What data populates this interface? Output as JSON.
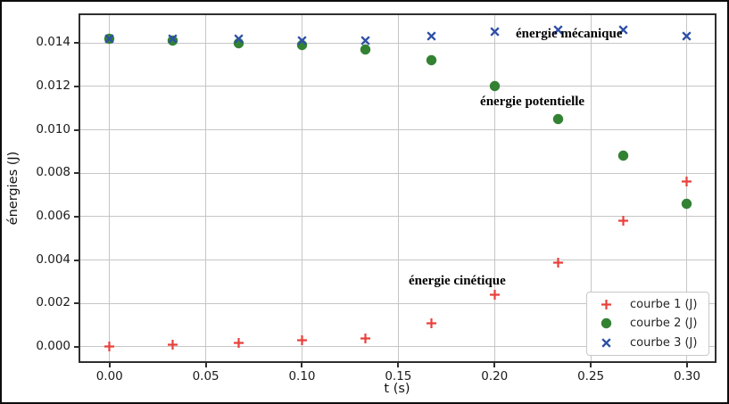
{
  "figure": {
    "background": "#ffffff",
    "frame_color": "#0d0d0d"
  },
  "chart_data": {
    "type": "scatter",
    "title": "",
    "xlabel": "t (s)",
    "ylabel": "énergies (J)",
    "grid": true,
    "grid_color": "#c6c6c6",
    "spine_color": "#2f2f2f",
    "tick_label_color": "#1b1b1b",
    "xlim": [
      -0.0161,
      0.3153
    ],
    "ylim": [
      -0.00074,
      0.01536
    ],
    "x": [
      0.0,
      0.033,
      0.067,
      0.1,
      0.133,
      0.167,
      0.2,
      0.233,
      0.267,
      0.3
    ],
    "series": [
      {
        "name": "courbe 1 (J)",
        "marker": "plus",
        "color": "#e8413c",
        "values": [
          0.0,
          0.0001,
          0.0002,
          0.0003,
          0.0004,
          0.0011,
          0.0024,
          0.0039,
          0.0058,
          0.0076
        ]
      },
      {
        "name": "courbe 2 (J)",
        "marker": "circle",
        "color": "#338233",
        "values": [
          0.0142,
          0.0141,
          0.014,
          0.0139,
          0.0137,
          0.0132,
          0.012,
          0.0105,
          0.0088,
          0.0066
        ]
      },
      {
        "name": "courbe 3 (J)",
        "marker": "x",
        "color": "#2e4fa8",
        "values": [
          0.0142,
          0.0142,
          0.0142,
          0.0141,
          0.0141,
          0.0143,
          0.0145,
          0.0146,
          0.0146,
          0.0143
        ]
      }
    ],
    "xticks": {
      "values": [
        0.0,
        0.05,
        0.1,
        0.15,
        0.2,
        0.25,
        0.3
      ],
      "labels": [
        "0.00",
        "0.05",
        "0.10",
        "0.15",
        "0.20",
        "0.25",
        "0.30"
      ]
    },
    "yticks": {
      "values": [
        0.0,
        0.002,
        0.004,
        0.006,
        0.008,
        0.01,
        0.012,
        0.014
      ],
      "labels": [
        "0.000",
        "0.002",
        "0.004",
        "0.006",
        "0.008",
        "0.010",
        "0.012",
        "0.014"
      ]
    },
    "annotations": [
      {
        "text": "énergie mécanique",
        "t": 0.211,
        "v": 0.01474
      },
      {
        "text": "énergie potentielle",
        "t": 0.1925,
        "v": 0.01162
      },
      {
        "text": "énergie cinétique",
        "t": 0.1554,
        "v": 0.00337
      }
    ],
    "legend": {
      "position": "lower-right",
      "border_color": "#c9c9c9",
      "text_color": "#262626",
      "items": [
        {
          "label": "courbe 1 (J)",
          "marker": "plus",
          "color": "#e8413c"
        },
        {
          "label": "courbe 2 (J)",
          "marker": "circle",
          "color": "#338233"
        },
        {
          "label": "courbe 3 (J)",
          "marker": "x",
          "color": "#2e4fa8"
        }
      ]
    }
  }
}
